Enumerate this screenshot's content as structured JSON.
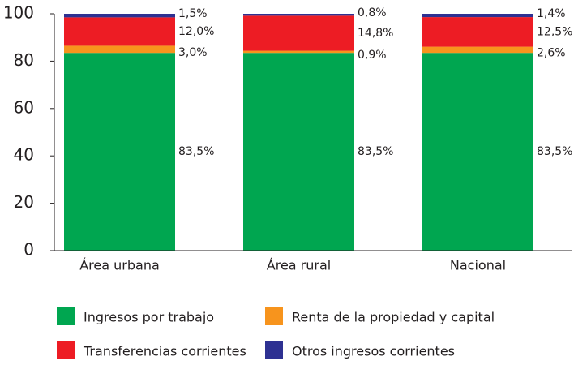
{
  "chart_data": {
    "type": "stacked_bar",
    "categories": [
      "Área urbana",
      "Área rural",
      "Nacional"
    ],
    "series": [
      {
        "name": "Ingresos por trabajo",
        "color": "#00a650",
        "values": [
          83.5,
          83.5,
          83.5
        ],
        "value_labels": [
          "83,5%",
          "83,5%",
          "83,5%"
        ]
      },
      {
        "name": "Renta de la propiedad y capital",
        "color": "#f7941d",
        "values": [
          3.0,
          0.9,
          2.6
        ],
        "value_labels": [
          "3,0%",
          "0,9%",
          "2,6%"
        ]
      },
      {
        "name": "Transferencias corrientes",
        "color": "#ed1c24",
        "values": [
          12.0,
          14.8,
          12.5
        ],
        "value_labels": [
          "12,0%",
          "14,8%",
          "12,5%"
        ]
      },
      {
        "name": "Otros ingresos corrientes",
        "color": "#2e3192",
        "values": [
          1.5,
          0.8,
          1.4
        ],
        "value_labels": [
          "1,5%",
          "0,8%",
          "1,4%"
        ]
      }
    ],
    "ylim": [
      0,
      100
    ],
    "yticks": [
      0,
      20,
      40,
      60,
      80,
      100
    ],
    "grid": false
  }
}
